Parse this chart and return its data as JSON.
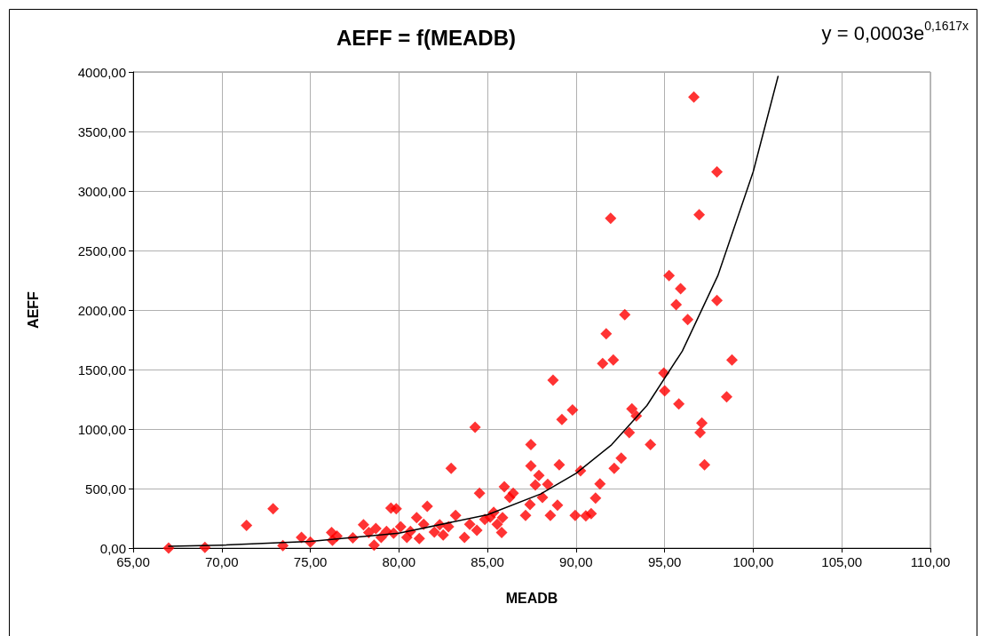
{
  "chart_data": {
    "type": "scatter",
    "title": "AEFF = f(MEADB)",
    "xlabel": "MEADB",
    "ylabel": "AEFF",
    "annotations": [
      "y = 0,0003e$^{0,1617x}$"
    ],
    "xlim": [
      65,
      110
    ],
    "xticks": [
      {
        "value": 65,
        "label": "65,00"
      },
      {
        "value": 70,
        "label": "70,00"
      },
      {
        "value": 75,
        "label": "75,00"
      },
      {
        "value": 80,
        "label": "80,00"
      },
      {
        "value": 85,
        "label": "85,00"
      },
      {
        "value": 90,
        "label": "90,00"
      },
      {
        "value": 95,
        "label": "95,00"
      },
      {
        "value": 100,
        "label": "100,00"
      },
      {
        "value": 105,
        "label": "105,00"
      },
      {
        "value": 110,
        "label": "110,00"
      }
    ],
    "ylim": [
      0,
      4000
    ],
    "yticks": [
      {
        "value": 0,
        "label": "0,00"
      },
      {
        "value": 500,
        "label": "500,00"
      },
      {
        "value": 1000,
        "label": "1000,00"
      },
      {
        "value": 1500,
        "label": "1500,00"
      },
      {
        "value": 2000,
        "label": "2000,00"
      },
      {
        "value": 2500,
        "label": "2500,00"
      },
      {
        "value": 3000,
        "label": "3000,00"
      },
      {
        "value": 3500,
        "label": "3500,00"
      },
      {
        "value": 4000,
        "label": "4000,00"
      }
    ],
    "grid": true,
    "series": [
      {
        "color": "#ff0000",
        "marker": "diamond",
        "x": [
          67.0,
          69.05,
          71.4,
          72.9,
          73.45,
          74.5,
          75.0,
          76.2,
          76.25,
          76.5,
          77.4,
          78.0,
          78.3,
          78.6,
          78.7,
          79.0,
          79.3,
          79.55,
          79.85,
          79.7,
          80.1,
          80.45,
          80.65,
          81.0,
          81.15,
          81.4,
          81.6,
          82.0,
          82.3,
          82.5,
          82.8,
          82.95,
          83.2,
          83.7,
          84.0,
          84.3,
          84.55,
          84.4,
          84.85,
          85.15,
          85.35,
          85.55,
          85.8,
          85.85,
          85.95,
          86.25,
          86.45,
          87.15,
          87.4,
          87.45,
          87.45,
          87.7,
          87.9,
          88.1,
          88.4,
          88.55,
          88.7,
          88.95,
          89.05,
          89.2,
          89.8,
          89.95,
          90.25,
          90.55,
          90.85,
          91.1,
          91.35,
          91.5,
          91.7,
          91.95,
          92.1,
          92.15,
          92.55,
          92.75,
          93.0,
          93.4,
          93.15,
          94.2,
          94.95,
          95.0,
          95.25,
          95.65,
          95.9,
          95.8,
          96.3,
          96.65,
          96.95,
          97.0,
          97.1,
          97.25,
          97.95,
          97.95,
          98.5,
          98.8
        ],
        "values": [
          0,
          5,
          190,
          330,
          20,
          90,
          50,
          130,
          65,
          100,
          85,
          195,
          130,
          25,
          165,
          90,
          140,
          335,
          330,
          125,
          180,
          90,
          140,
          255,
          80,
          200,
          350,
          135,
          195,
          110,
          180,
          670,
          275,
          90,
          200,
          1015,
          460,
          150,
          240,
          260,
          300,
          200,
          130,
          255,
          515,
          425,
          460,
          275,
          365,
          870,
          690,
          530,
          610,
          425,
          535,
          275,
          1410,
          360,
          700,
          1080,
          1160,
          275,
          650,
          270,
          290,
          420,
          540,
          1550,
          1800,
          2770,
          1580,
          670,
          755,
          1960,
          970,
          1110,
          1170,
          870,
          1470,
          1320,
          2290,
          2045,
          2180,
          1210,
          1920,
          3790,
          2800,
          970,
          1050,
          700,
          3160,
          2080,
          1270,
          1580
        ]
      },
      {
        "type": "line",
        "color": "#000000",
        "marker": "none",
        "line_style": "solid",
        "x": [
          67,
          70,
          75,
          80,
          85,
          88,
          90,
          92,
          94,
          96,
          98,
          100,
          101.4
        ],
        "values": [
          15,
          25,
          56,
          125,
          280,
          454,
          628,
          867,
          1198,
          1656,
          2288,
          3162,
          3963
        ]
      }
    ]
  }
}
